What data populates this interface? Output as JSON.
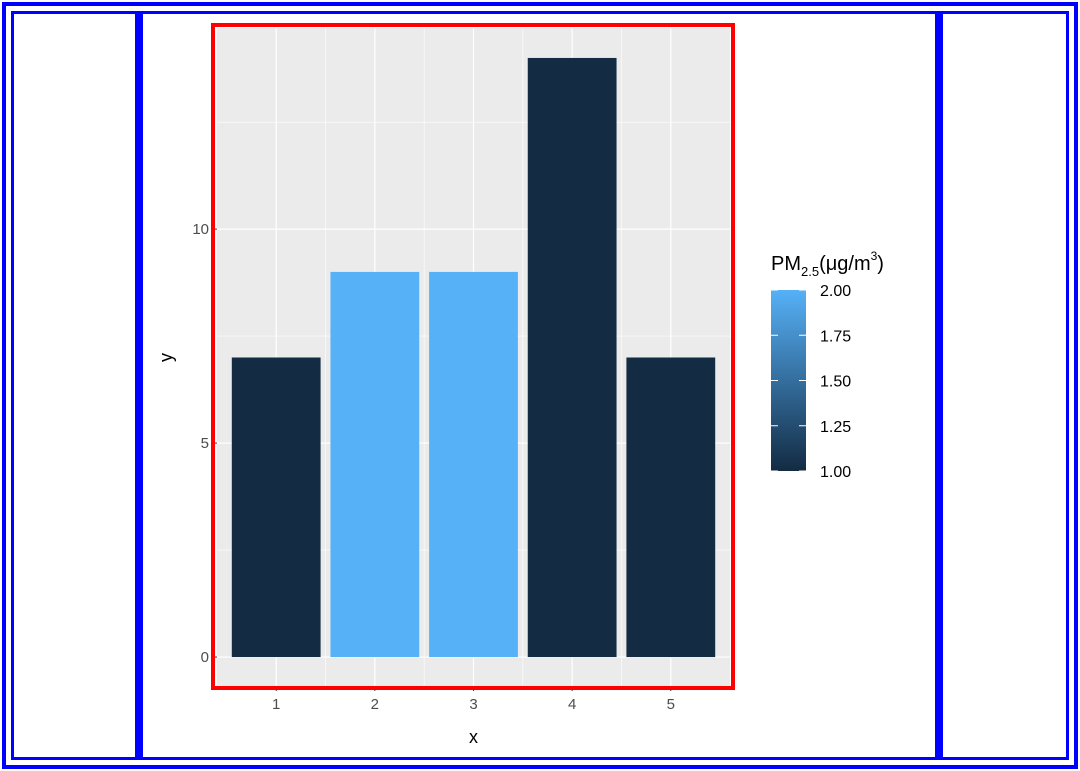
{
  "chart_data": {
    "type": "bar",
    "categories": [
      "1",
      "2",
      "3",
      "4",
      "5"
    ],
    "values": [
      7,
      9,
      9,
      14,
      7
    ],
    "fill_values": [
      1,
      2,
      2,
      1,
      1
    ],
    "xlabel": "x",
    "ylabel": "y",
    "ylim": [
      -0.7,
      14.7
    ],
    "y_ticks": [
      "0",
      "5",
      "10"
    ],
    "legend": {
      "title_main": "PM",
      "title_sub": "2.5",
      "title_unit_prefix": "(μg/m",
      "title_sup": "3",
      "title_suffix": ")",
      "ticks": [
        "1.00",
        "1.25",
        "1.50",
        "1.75",
        "2.00"
      ],
      "range": [
        1,
        2
      ],
      "placement": "right"
    },
    "grid": true,
    "highlight_box": "red"
  },
  "colors": {
    "low": "#132B43",
    "high": "#56B1F7",
    "panel": "#EBEBEB",
    "grid": "#FFFFFF",
    "axis_text": "#4D4D4D",
    "frame": "#0000FF",
    "highlight": "#FF0000"
  }
}
